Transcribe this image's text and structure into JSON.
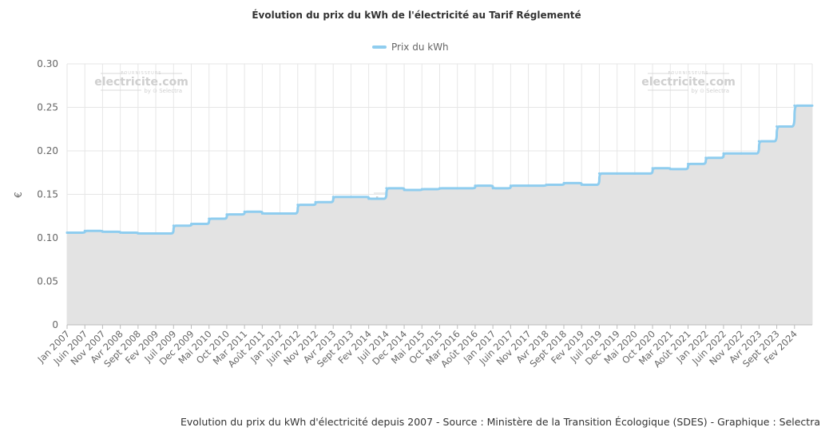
{
  "chart_data": {
    "type": "area",
    "title": "Évolution du prix du kWh de l'électricité au Tarif Réglementé",
    "xlabel": "",
    "ylabel": "€",
    "ylim": [
      0,
      0.3
    ],
    "yticks": [
      "0.30",
      "0.25",
      "0.20",
      "0.15",
      "0.10",
      "0.05",
      "0"
    ],
    "grid": true,
    "legend_position": "top-center",
    "colors": {
      "line": "#8fcdef",
      "fill": "#e3e3e3",
      "grid": "#e6e6e6",
      "axis": "#bbbbbb"
    },
    "categories": [
      "Jan 2007",
      "Juin 2007",
      "Nov 2007",
      "Avr 2008",
      "Sept 2008",
      "Fev 2009",
      "Juil 2009",
      "Dec 2009",
      "Mai 2010",
      "Oct 2010",
      "Mar 2011",
      "Août 2011",
      "Jan 2012",
      "Juin 2012",
      "Nov 2012",
      "Avr 2013",
      "Sept 2013",
      "Fev 2014",
      "Juil 2014",
      "Dec 2014",
      "Mai 2015",
      "Oct 2015",
      "Mar 2016",
      "Août 2016",
      "Jan 2017",
      "Juin 2017",
      "Nov 2017",
      "Avr 2018",
      "Sept 2018",
      "Fev 2019",
      "Juil 2019",
      "Dec 2019",
      "Mai 2020",
      "Oct 2020",
      "Mar 2021",
      "Août 2021",
      "Jan 2022",
      "Juin 2022",
      "Nov 2022",
      "Avr 2023",
      "Sept 2023",
      "Fev 2024"
    ],
    "series": [
      {
        "name": "Prix du kWh",
        "values": [
          0.106,
          0.108,
          0.107,
          0.106,
          0.105,
          0.105,
          0.114,
          0.116,
          0.122,
          0.127,
          0.13,
          0.128,
          0.128,
          0.138,
          0.141,
          0.147,
          0.147,
          0.145,
          0.157,
          0.155,
          0.156,
          0.157,
          0.157,
          0.16,
          0.157,
          0.16,
          0.16,
          0.161,
          0.163,
          0.161,
          0.174,
          0.174,
          0.174,
          0.18,
          0.179,
          0.185,
          0.192,
          0.197,
          0.197,
          0.211,
          0.228,
          0.252
        ]
      }
    ]
  },
  "watermark": {
    "small": "FOURNISSEURS",
    "main": "electricite.com",
    "sub": "by ⊙ Selectra"
  },
  "caption": "Evolution du prix du kWh d'électricité depuis 2007 - Source : Ministère de la Transition Écologique (SDES) - Graphique : Selectra"
}
